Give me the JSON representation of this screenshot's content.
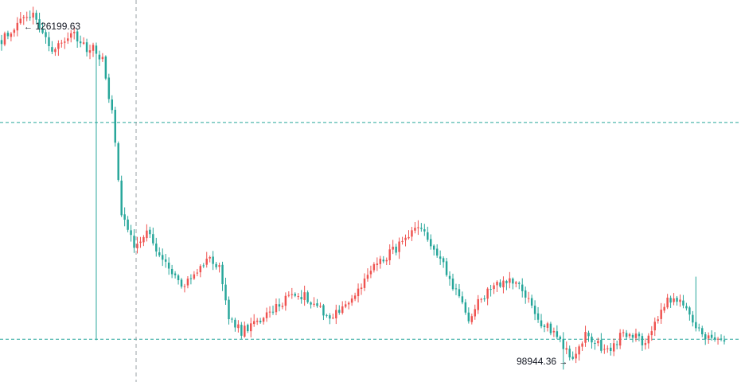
{
  "chart_data": {
    "type": "candlestick",
    "title": "",
    "xlabel": "",
    "ylabel": "",
    "ylim": [
      98000,
      127000
    ],
    "grid": false,
    "colors": {
      "up": "#ef5350",
      "down": "#26a69a",
      "wick": "#ef5350",
      "crosshair": "#9aa0a6",
      "price_line": "#26a69a"
    },
    "high_marker": {
      "value": 126199.63,
      "label": "126199.63",
      "arrow": "←"
    },
    "low_marker": {
      "value": 98944.36,
      "label": "98944.36",
      "arrow": "→"
    },
    "price_lines": [
      117700,
      101250
    ],
    "candle_count": 230,
    "waypoints": [
      [
        0,
        124000
      ],
      [
        6,
        125300
      ],
      [
        9,
        126199.63
      ],
      [
        12,
        125200
      ],
      [
        16,
        123200
      ],
      [
        22,
        124500
      ],
      [
        27,
        123200
      ],
      [
        29,
        123600
      ],
      [
        32,
        122400
      ],
      [
        35,
        118400
      ],
      [
        38,
        111000
      ],
      [
        42,
        108400
      ],
      [
        46,
        109500
      ],
      [
        50,
        107400
      ],
      [
        58,
        105200
      ],
      [
        65,
        107400
      ],
      [
        69,
        106800
      ],
      [
        72,
        102800
      ],
      [
        76,
        101800
      ],
      [
        85,
        103200
      ],
      [
        92,
        104800
      ],
      [
        96,
        104500
      ],
      [
        101,
        103700
      ],
      [
        104,
        102800
      ],
      [
        108,
        103700
      ],
      [
        113,
        104800
      ],
      [
        118,
        106900
      ],
      [
        122,
        107600
      ],
      [
        128,
        108700
      ],
      [
        131,
        109500
      ],
      [
        134,
        109200
      ],
      [
        138,
        107900
      ],
      [
        141,
        106200
      ],
      [
        145,
        104500
      ],
      [
        148,
        102900
      ],
      [
        152,
        104300
      ],
      [
        156,
        105400
      ],
      [
        160,
        105600
      ],
      [
        163,
        105400
      ],
      [
        166,
        104600
      ],
      [
        169,
        103100
      ],
      [
        171,
        102500
      ],
      [
        175,
        101900
      ],
      [
        178,
        100800
      ],
      [
        181,
        99600
      ],
      [
        185,
        101600
      ],
      [
        189,
        100800
      ],
      [
        192,
        100400
      ],
      [
        196,
        101400
      ],
      [
        200,
        101600
      ],
      [
        203,
        101100
      ],
      [
        205,
        101300
      ],
      [
        208,
        102900
      ],
      [
        210,
        104000
      ],
      [
        214,
        104300
      ],
      [
        217,
        103500
      ],
      [
        220,
        102000
      ],
      [
        224,
        101300
      ],
      [
        227,
        101000
      ],
      [
        229,
        101050
      ]
    ],
    "spikes": [
      {
        "index": 30,
        "low": 101180
      },
      {
        "index": 220,
        "high": 106000
      }
    ]
  }
}
